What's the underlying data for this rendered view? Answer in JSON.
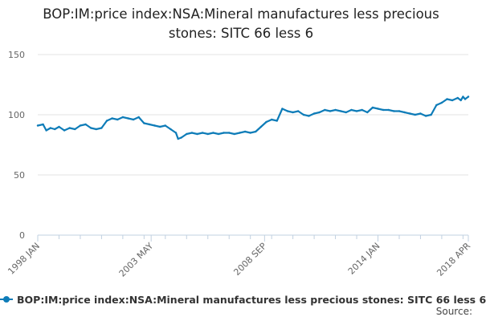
{
  "title_line1": "BOP:IM:price index:NSA:Mineral manufactures less precious",
  "title_line2": "stones: SITC 66 less 6",
  "source_label": "Source:",
  "colors": {
    "series": "#0e7cb8",
    "grid": "#e3e3e3",
    "axis": "#c0d0e0"
  },
  "chart_data": {
    "type": "line",
    "title": "BOP:IM:price index:NSA:Mineral manufactures less precious stones: SITC 66 less 6",
    "xlabel": "",
    "ylabel": "",
    "ylim": [
      0,
      150
    ],
    "yticks": [
      0,
      50,
      100,
      150
    ],
    "xticks": [
      {
        "label": "1998 JAN",
        "t": 1998.0
      },
      {
        "label": "2003 MAY",
        "t": 2003.333
      },
      {
        "label": "2008 SEP",
        "t": 2008.667
      },
      {
        "label": "2014 JAN",
        "t": 2014.0
      },
      {
        "label": "2018 APR",
        "t": 2018.25
      }
    ],
    "xlim": [
      1998.0,
      2018.25
    ],
    "series": [
      {
        "name": "BOP:IM:price index:NSA:Mineral manufactures less precious stones: SITC 66 less 6",
        "points": [
          [
            1998.0,
            91
          ],
          [
            1998.25,
            92
          ],
          [
            1998.4,
            87
          ],
          [
            1998.6,
            89
          ],
          [
            1998.8,
            88
          ],
          [
            1999.0,
            90
          ],
          [
            1999.25,
            87
          ],
          [
            1999.5,
            89
          ],
          [
            1999.75,
            88
          ],
          [
            2000.0,
            91
          ],
          [
            2000.25,
            92
          ],
          [
            2000.5,
            89
          ],
          [
            2000.75,
            88
          ],
          [
            2001.0,
            89
          ],
          [
            2001.25,
            95
          ],
          [
            2001.5,
            97
          ],
          [
            2001.75,
            96
          ],
          [
            2002.0,
            98
          ],
          [
            2002.25,
            97
          ],
          [
            2002.5,
            96
          ],
          [
            2002.75,
            98
          ],
          [
            2003.0,
            93
          ],
          [
            2003.25,
            92
          ],
          [
            2003.5,
            91
          ],
          [
            2003.75,
            90
          ],
          [
            2004.0,
            91
          ],
          [
            2004.25,
            88
          ],
          [
            2004.5,
            85
          ],
          [
            2004.6,
            80
          ],
          [
            2004.75,
            81
          ],
          [
            2005.0,
            84
          ],
          [
            2005.25,
            85
          ],
          [
            2005.5,
            84
          ],
          [
            2005.75,
            85
          ],
          [
            2006.0,
            84
          ],
          [
            2006.25,
            85
          ],
          [
            2006.5,
            84
          ],
          [
            2006.75,
            85
          ],
          [
            2007.0,
            85
          ],
          [
            2007.25,
            84
          ],
          [
            2007.5,
            85
          ],
          [
            2007.75,
            86
          ],
          [
            2008.0,
            85
          ],
          [
            2008.25,
            86
          ],
          [
            2008.5,
            90
          ],
          [
            2008.75,
            94
          ],
          [
            2009.0,
            96
          ],
          [
            2009.25,
            95
          ],
          [
            2009.5,
            105
          ],
          [
            2009.75,
            103
          ],
          [
            2010.0,
            102
          ],
          [
            2010.25,
            103
          ],
          [
            2010.5,
            100
          ],
          [
            2010.75,
            99
          ],
          [
            2011.0,
            101
          ],
          [
            2011.25,
            102
          ],
          [
            2011.5,
            104
          ],
          [
            2011.75,
            103
          ],
          [
            2012.0,
            104
          ],
          [
            2012.25,
            103
          ],
          [
            2012.5,
            102
          ],
          [
            2012.75,
            104
          ],
          [
            2013.0,
            103
          ],
          [
            2013.25,
            104
          ],
          [
            2013.5,
            102
          ],
          [
            2013.75,
            106
          ],
          [
            2014.0,
            105
          ],
          [
            2014.25,
            104
          ],
          [
            2014.5,
            104
          ],
          [
            2014.75,
            103
          ],
          [
            2015.0,
            103
          ],
          [
            2015.25,
            102
          ],
          [
            2015.5,
            101
          ],
          [
            2015.75,
            100
          ],
          [
            2016.0,
            101
          ],
          [
            2016.25,
            99
          ],
          [
            2016.5,
            100
          ],
          [
            2016.75,
            108
          ],
          [
            2017.0,
            110
          ],
          [
            2017.25,
            113
          ],
          [
            2017.5,
            112
          ],
          [
            2017.75,
            114
          ],
          [
            2017.9,
            112
          ],
          [
            2018.0,
            115
          ],
          [
            2018.1,
            113
          ],
          [
            2018.25,
            115
          ]
        ]
      }
    ]
  }
}
